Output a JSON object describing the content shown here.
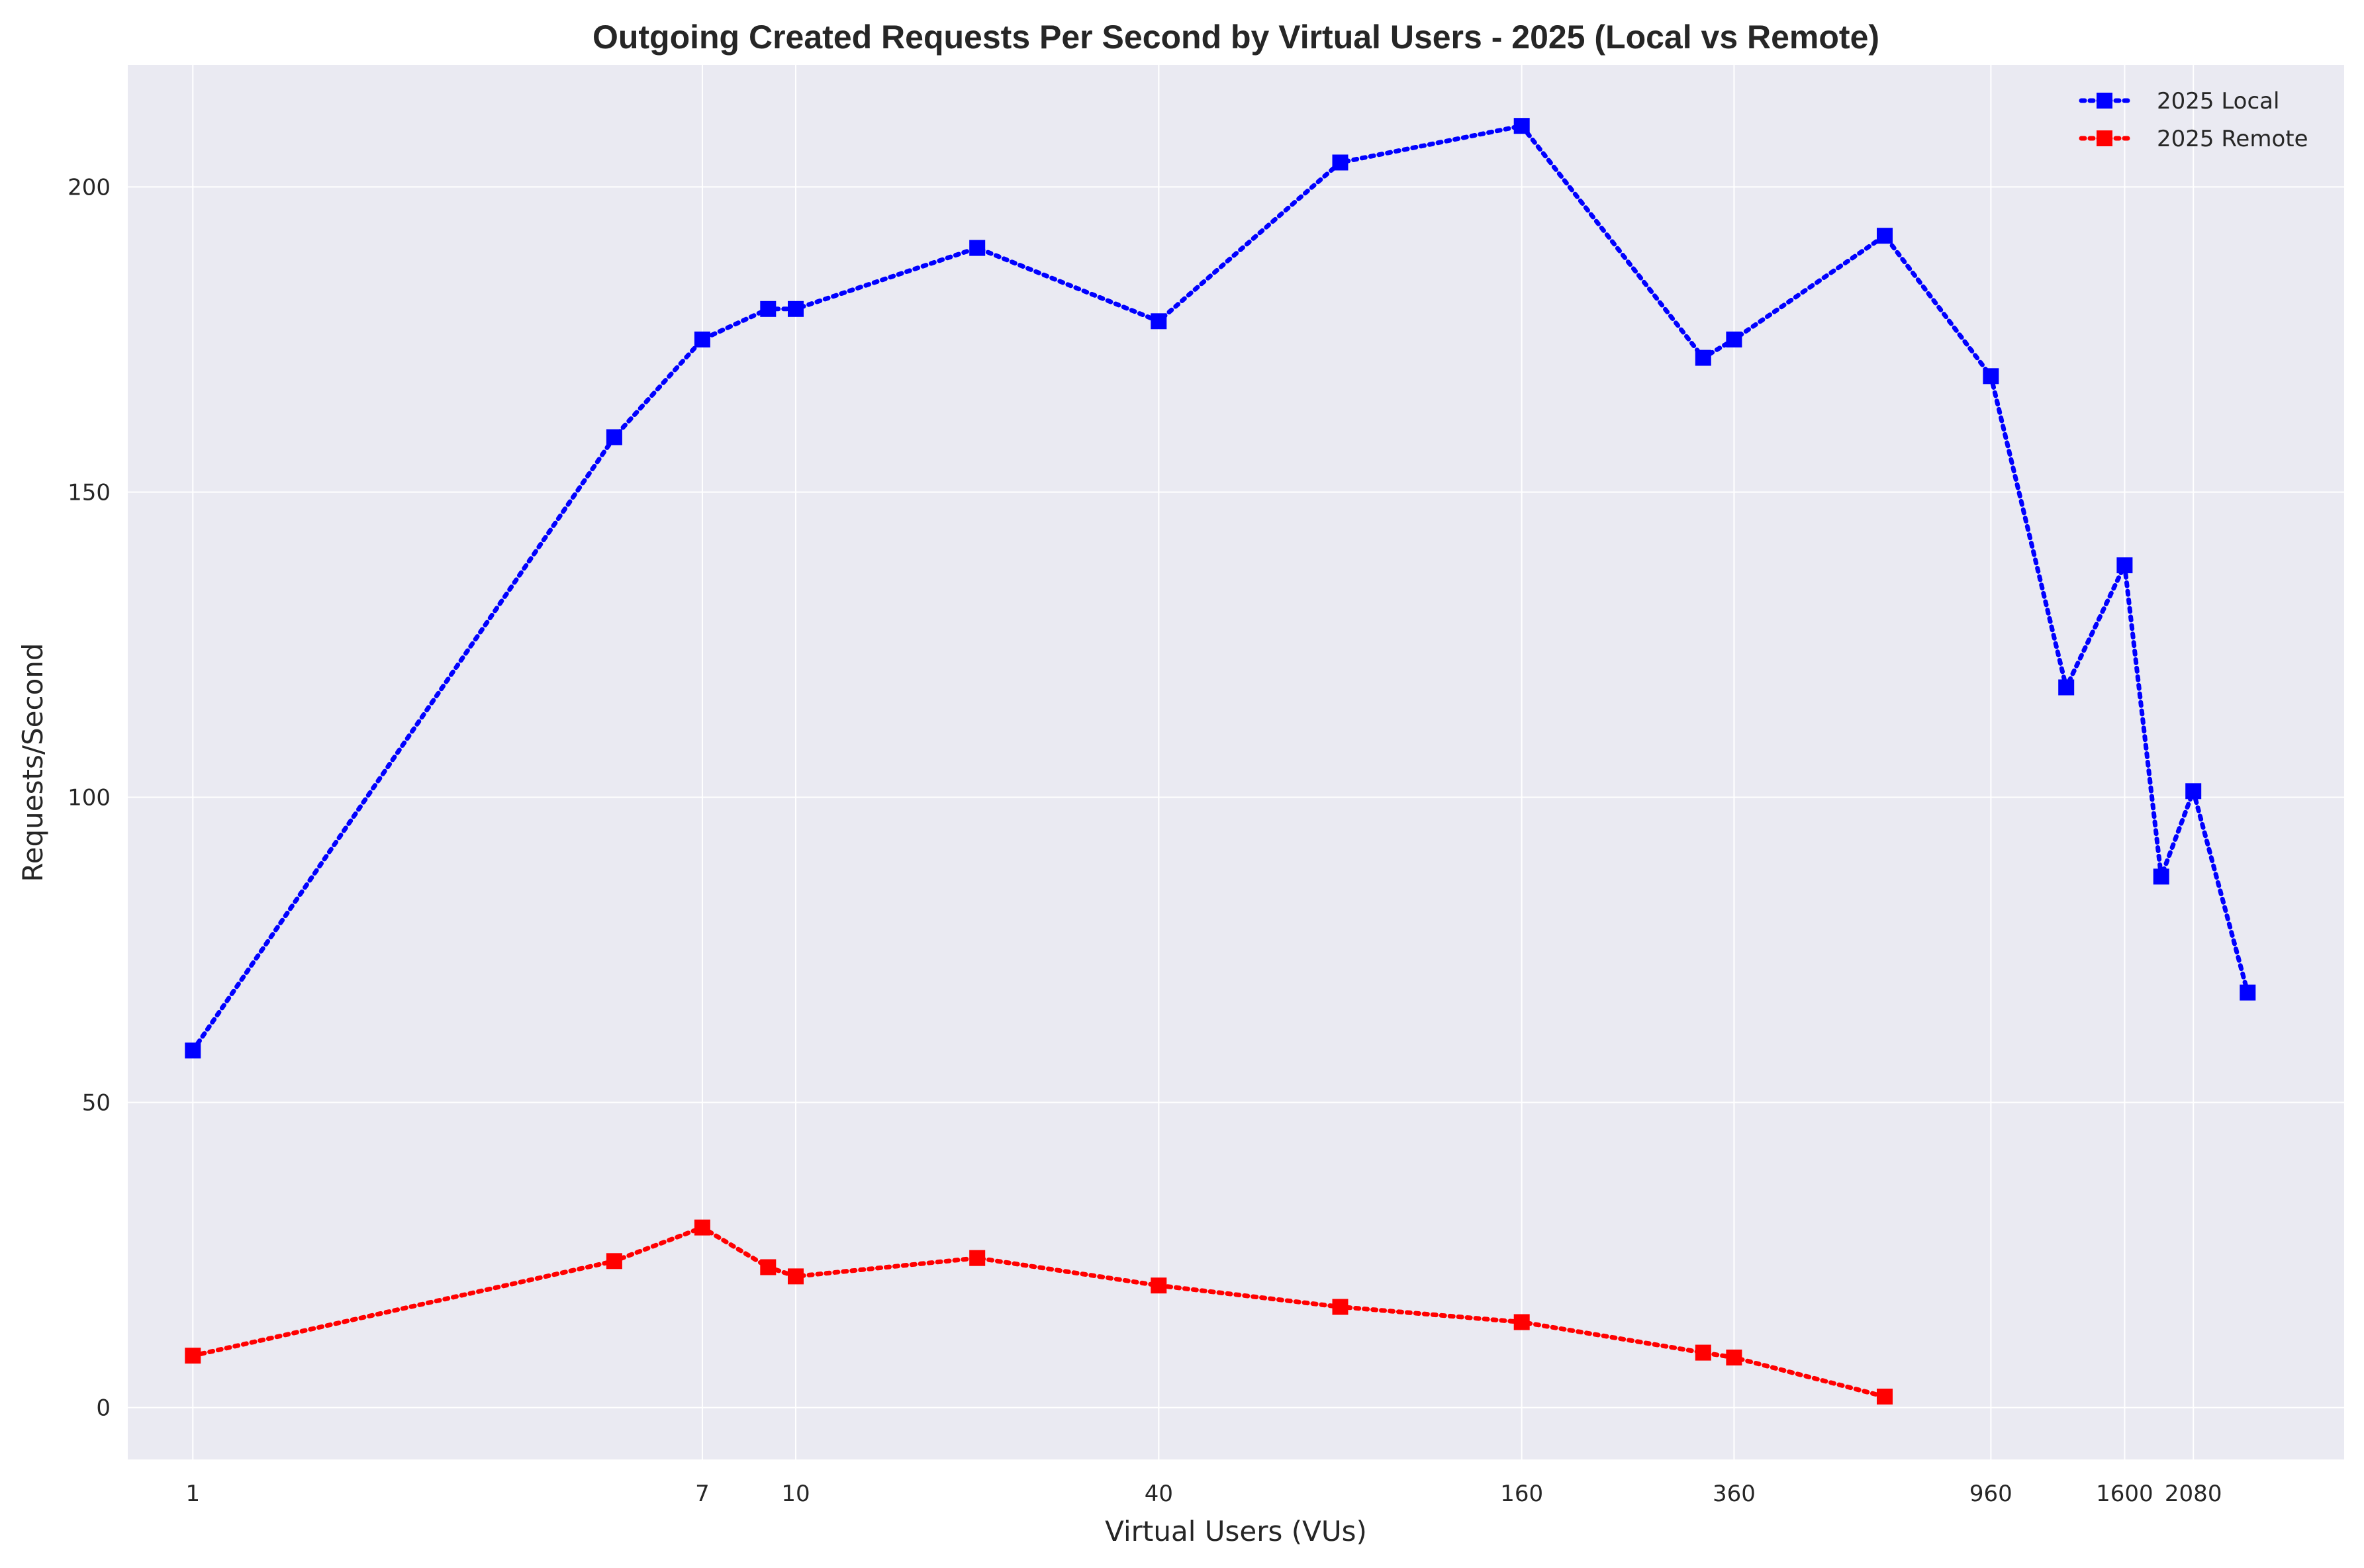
{
  "chart_data": {
    "type": "line",
    "title": "Outgoing Created Requests Per Second by Virtual Users - 2025 (Local vs Remote)",
    "xlabel": "Virtual Users (VUs)",
    "ylabel": "Requests/Second",
    "xscale": "log",
    "xlim": [
      0.78,
      3700
    ],
    "ylim": [
      -8.5,
      220
    ],
    "xticks": [
      1,
      7,
      10,
      40,
      160,
      360,
      960,
      1600,
      2080
    ],
    "yticks": [
      0,
      50,
      100,
      150,
      200
    ],
    "grid": true,
    "legend_position": "top-right",
    "series": [
      {
        "name": "2025 Local",
        "color": "#0000ff",
        "marker": "square",
        "line_style": "dotted",
        "x": [
          1,
          5,
          7,
          9,
          10,
          20,
          40,
          80,
          160,
          320,
          360,
          640,
          960,
          1280,
          1600,
          1840,
          2080,
          2560
        ],
        "y": [
          58.5,
          159,
          175,
          180,
          180,
          190,
          178,
          204,
          210,
          172,
          175,
          192,
          169,
          118,
          138,
          87,
          101,
          68
        ]
      },
      {
        "name": "2025 Remote",
        "color": "#ff0000",
        "marker": "square",
        "line_style": "dotted",
        "x": [
          1,
          5,
          7,
          9,
          10,
          20,
          40,
          80,
          160,
          320,
          360,
          640
        ],
        "y": [
          8.5,
          24,
          29.5,
          23,
          21.5,
          24.5,
          20,
          16.5,
          14,
          9,
          8.2,
          1.8
        ]
      }
    ]
  }
}
